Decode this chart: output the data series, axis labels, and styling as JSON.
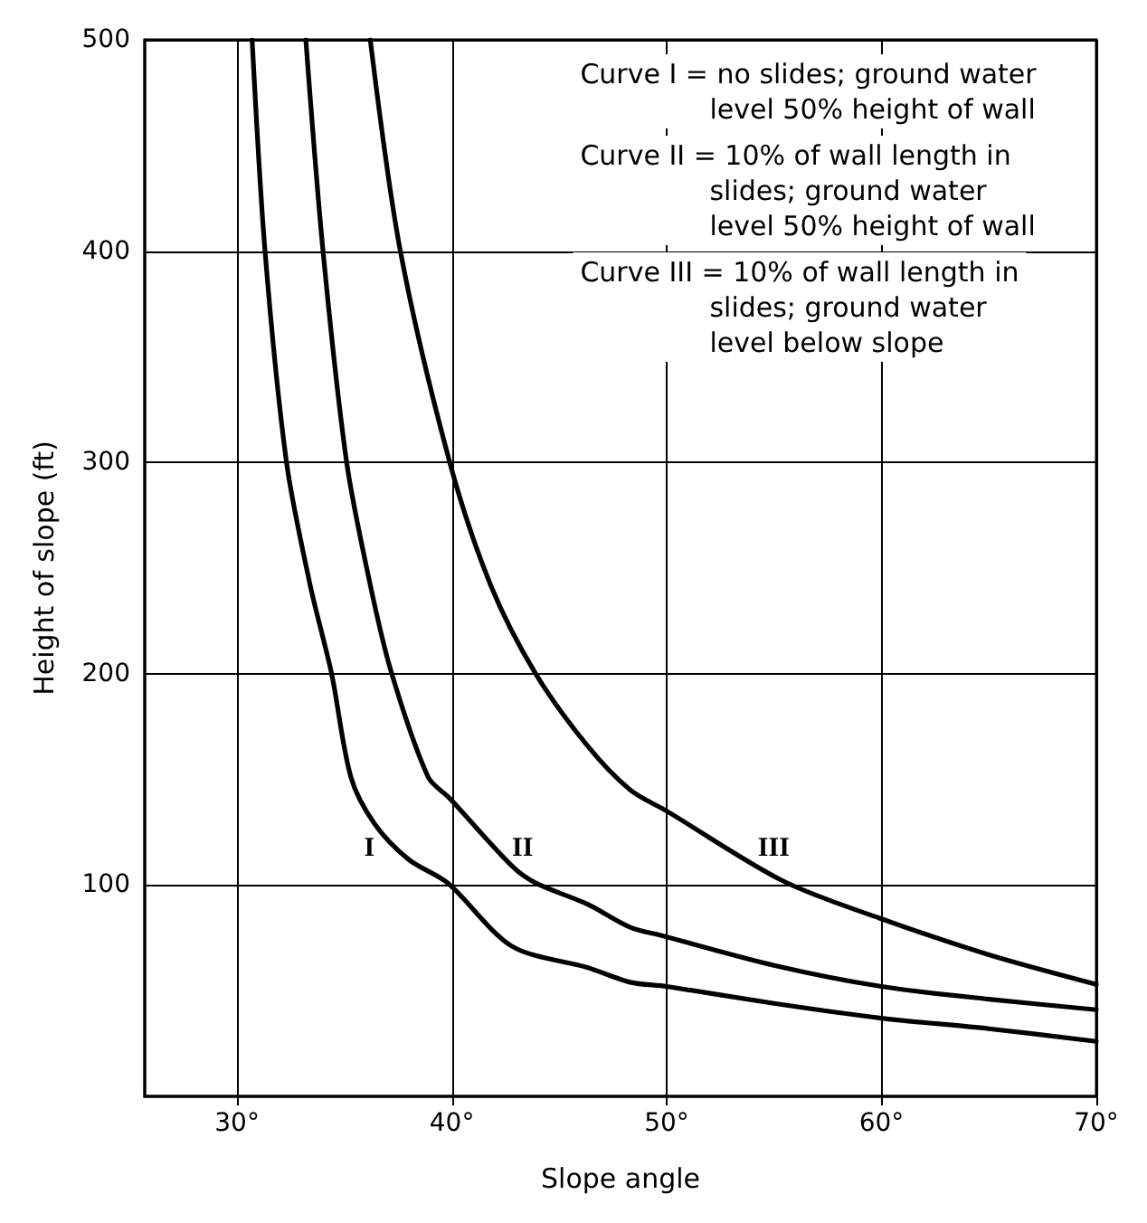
{
  "chart_data": {
    "type": "line",
    "xlabel": "Slope angle",
    "ylabel": "Height of slope (ft)",
    "xlim": [
      25.7,
      70
    ],
    "xticks": [
      {
        "value": 30,
        "label": "30°"
      },
      {
        "value": 40,
        "label": "40°"
      },
      {
        "value": 50,
        "label": "50°"
      },
      {
        "value": 60,
        "label": "60°"
      },
      {
        "value": 70,
        "label": "70°"
      }
    ],
    "ylim": [
      0,
      500
    ],
    "yticks": [
      100,
      200,
      300,
      400,
      500
    ],
    "grid": true,
    "marker": "none",
    "line_style": "solid",
    "series": [
      {
        "name": "I",
        "color": "#000000",
        "x": [
          30.7,
          31.3,
          32.3,
          33.4,
          34.4,
          35.3,
          36.4,
          38,
          39.8,
          42.8,
          46.3,
          48.3,
          50,
          55,
          60,
          65,
          70
        ],
        "values": [
          500,
          400,
          300,
          242,
          200,
          151,
          129,
          112,
          101,
          71,
          61,
          54,
          52,
          44,
          37,
          32,
          26
        ]
      },
      {
        "name": "II",
        "color": "#000000",
        "x": [
          33.2,
          34,
          35.1,
          36.2,
          37.2,
          38.9,
          39.9,
          42.8,
          43.9,
          46.3,
          48.3,
          49.8,
          55,
          60,
          65,
          70
        ],
        "values": [
          500,
          400,
          300,
          242,
          200,
          151,
          141,
          109,
          101,
          91,
          80,
          76,
          62,
          52,
          46,
          41
        ]
      },
      {
        "name": "III",
        "color": "#000000",
        "x": [
          36.2,
          37.6,
          39.9,
          41.8,
          43.9,
          46.3,
          48.3,
          50,
          55.4,
          60,
          65,
          70
        ],
        "values": [
          500,
          400,
          300,
          242,
          200,
          166,
          145,
          135,
          102,
          84,
          67,
          53
        ]
      }
    ],
    "annotations": [
      "Curve I = no slides; ground water\n               level 50% height of wall",
      "Curve II = 10% of wall length in\n               slides; ground water\n               level 50% height of wall",
      "Curve III = 10% of wall length in\n               slides; ground water\n               level below slope"
    ]
  }
}
